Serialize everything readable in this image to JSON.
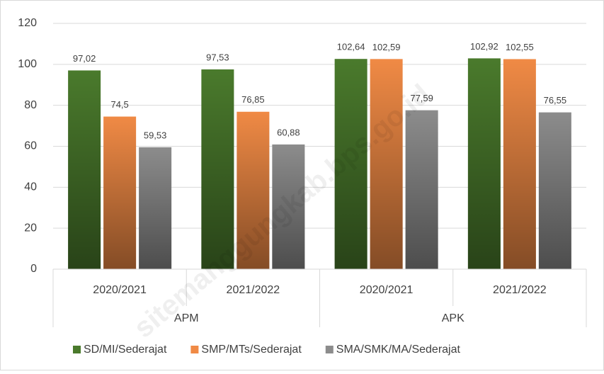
{
  "chart_data": {
    "type": "bar",
    "category_groups": [
      {
        "name": "APM",
        "categories": [
          "2020/2021",
          "2021/2022"
        ]
      },
      {
        "name": "APK",
        "categories": [
          "2020/2021",
          "2021/2022"
        ]
      }
    ],
    "series": [
      {
        "name": "SD/MI/Sederajat",
        "color": "#4a7a2c",
        "values": [
          97.02,
          97.53,
          102.64,
          102.92
        ],
        "value_labels": [
          "97,02",
          "97,53",
          "102,64",
          "102,92"
        ]
      },
      {
        "name": "SMP/MTs/Sederajat",
        "color": "#f08a45",
        "values": [
          74.5,
          76.85,
          102.59,
          102.55
        ],
        "value_labels": [
          "74,5",
          "76,85",
          "102,59",
          "102,55"
        ]
      },
      {
        "name": "SMA/SMK/MA/Sederajat",
        "color": "#8c8c8c",
        "values": [
          59.53,
          60.88,
          77.59,
          76.55
        ],
        "value_labels": [
          "59,53",
          "60,88",
          "77,59",
          "76,55"
        ]
      }
    ],
    "ylim": [
      0,
      120
    ],
    "yticks": [
      0,
      20,
      40,
      60,
      80,
      100,
      120
    ],
    "grid": true,
    "legend": "bottom",
    "watermark": "sitemanggungkab.bps.go.id"
  }
}
